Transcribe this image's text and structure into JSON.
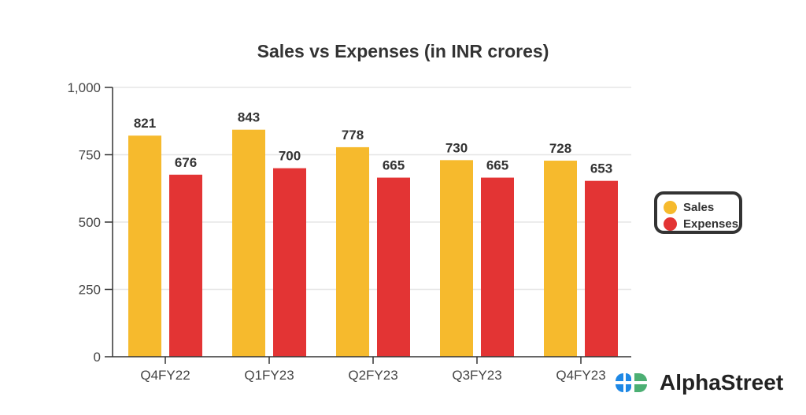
{
  "chart_data": {
    "type": "bar",
    "title": "Sales vs Expenses (in INR crores)",
    "categories": [
      "Q4FY22",
      "Q1FY23",
      "Q2FY23",
      "Q3FY23",
      "Q4FY23"
    ],
    "series": [
      {
        "name": "Sales",
        "color": "#F6BA2D",
        "values": [
          821,
          843,
          778,
          730,
          728
        ]
      },
      {
        "name": "Expenses",
        "color": "#E33434",
        "values": [
          676,
          700,
          665,
          665,
          653
        ]
      }
    ],
    "ylim": [
      0,
      1000
    ],
    "yticks": [
      "0",
      "250",
      "500",
      "750",
      "1,000"
    ],
    "ytick_values": [
      0,
      250,
      500,
      750,
      1000
    ],
    "grid": true,
    "legend_position": "right"
  },
  "brand": {
    "name": "AlphaStreet",
    "colors": [
      "#1E88E5",
      "#4CAF73"
    ]
  }
}
